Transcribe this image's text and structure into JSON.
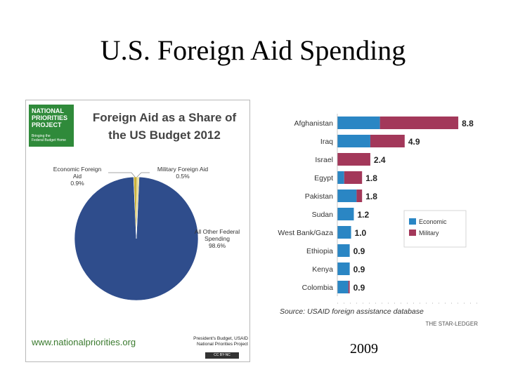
{
  "slide": {
    "title": "U.S. Foreign Aid Spending",
    "year": "2009"
  },
  "colors": {
    "economic": "#2a86c4",
    "military": "#a3385a",
    "pie_main": "#2f4d8c",
    "pie_small_a": "#e6d67a",
    "pie_small_b": "#c9b03a"
  },
  "left_panel": {
    "logo": {
      "name": "NATIONAL\nPRIORITIES\nPROJECT",
      "tagline": "Bringing the\nFederal Budget Home"
    },
    "title": "Foreign Aid as a Share of the US Budget 2012",
    "website": "www.nationalpriorities.org",
    "source": "President's Budget, USAID\nNational Priorities Project",
    "license": "CC BY-NC"
  },
  "chart_data": [
    {
      "type": "pie",
      "title": "Foreign Aid as a Share of the US Budget 2012",
      "slices": [
        {
          "name": "All Other Federal Spending",
          "value": 98.6,
          "label": "All Other Federal\nSpending\n98.6%"
        },
        {
          "name": "Economic Foreign Aid",
          "value": 0.9,
          "label": "Economic Foreign\nAid\n0.9%"
        },
        {
          "name": "Military Foreign Aid",
          "value": 0.5,
          "label": "Military Foreign Aid\n0.5%"
        }
      ]
    },
    {
      "type": "bar",
      "orientation": "horizontal",
      "stacked": true,
      "categories": [
        "Afghanistan",
        "Iraq",
        "Israel",
        "Egypt",
        "Pakistan",
        "Sudan",
        "West Bank/Gaza",
        "Ethiopia",
        "Kenya",
        "Colombia"
      ],
      "totals": [
        "8.8",
        "4.9",
        "2.4",
        "1.8",
        "1.8",
        "1.2",
        "1.0",
        "0.9",
        "0.9",
        "0.9"
      ],
      "series": [
        {
          "name": "Economic",
          "values": [
            3.1,
            2.4,
            0.0,
            0.5,
            1.4,
            1.2,
            1.0,
            0.9,
            0.9,
            0.8
          ]
        },
        {
          "name": "Military",
          "values": [
            5.7,
            2.5,
            2.4,
            1.3,
            0.4,
            0.0,
            0.0,
            0.0,
            0.0,
            0.1
          ]
        }
      ],
      "legend": {
        "position": "right",
        "entries": [
          "Economic",
          "Military"
        ]
      },
      "xlim": [
        0,
        9
      ],
      "grid": false,
      "source": "Source: USAID foreign assistance database",
      "credit": "THE STAR-LEDGER"
    }
  ]
}
